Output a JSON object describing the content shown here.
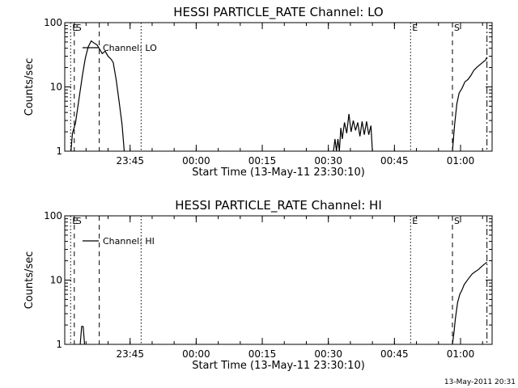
{
  "stamp": "13-May-2011 20:31",
  "chart_data": [
    {
      "type": "line",
      "title": "HESSI PARTICLE_RATE Channel: LO",
      "xlabel": "Start Time (13-May-11 23:30:10)",
      "ylabel": "Counts/sec",
      "yscale": "log",
      "ylim": [
        1,
        100
      ],
      "xlim": [
        "23:30:10",
        "01:07:10"
      ],
      "yticks": [
        {
          "v": 1,
          "label": "1"
        },
        {
          "v": 10,
          "label": "10"
        },
        {
          "v": 100,
          "label": "100"
        }
      ],
      "xticks": [
        {
          "t": "23:45",
          "label": "23:45"
        },
        {
          "t": "00:00",
          "label": "00:00"
        },
        {
          "t": "00:15",
          "label": "00:15"
        },
        {
          "t": "00:30",
          "label": "00:30"
        },
        {
          "t": "00:45",
          "label": "00:45"
        },
        {
          "t": "01:00",
          "label": "01:00"
        }
      ],
      "legend": {
        "label": "Channel: LO",
        "position": "top-left"
      },
      "markers": [
        {
          "t": "23:31:30",
          "label": "E",
          "style": "dotted"
        },
        {
          "t": "23:32:20",
          "label": "S",
          "style": "dashed"
        },
        {
          "t": "23:38:00",
          "label": "",
          "style": "dashed"
        },
        {
          "t": "23:47:30",
          "label": "",
          "style": "dotted"
        },
        {
          "t": "00:48:40",
          "label": "E",
          "style": "dotted"
        },
        {
          "t": "00:58:10",
          "label": "S",
          "style": "dashed"
        },
        {
          "t": "01:06:00",
          "label": "",
          "style": "dashdot"
        }
      ],
      "series": [
        {
          "segments": [
            [
              [
                "23:31:35",
                1.0
              ],
              [
                "23:31:55",
                1.9
              ],
              [
                "23:32:35",
                2.7
              ],
              [
                "23:33:20",
                6.0
              ],
              [
                "23:34:10",
                15.0
              ],
              [
                "23:34:50",
                28.0
              ],
              [
                "23:35:30",
                42.0
              ],
              [
                "23:36:10",
                52.0
              ],
              [
                "23:36:50",
                48.0
              ],
              [
                "23:37:30",
                45.0
              ],
              [
                "23:38:10",
                38.0
              ],
              [
                "23:38:40",
                33.0
              ],
              [
                "23:39:20",
                36.0
              ],
              [
                "23:40:00",
                30.0
              ],
              [
                "23:40:40",
                27.0
              ],
              [
                "23:41:10",
                24.0
              ],
              [
                "23:41:50",
                13.0
              ],
              [
                "23:42:30",
                6.0
              ],
              [
                "23:43:10",
                2.6
              ],
              [
                "23:43:40",
                1.0
              ]
            ],
            [
              [
                "00:31:10",
                1.0
              ],
              [
                "00:31:30",
                1.55
              ],
              [
                "00:31:50",
                1.0
              ],
              [
                "00:32:10",
                1.55
              ],
              [
                "00:32:30",
                1.0
              ],
              [
                "00:32:50",
                2.3
              ],
              [
                "00:33:10",
                1.55
              ],
              [
                "00:33:40",
                2.8
              ],
              [
                "00:34:10",
                1.9
              ],
              [
                "00:34:40",
                3.8
              ],
              [
                "00:35:10",
                2.0
              ],
              [
                "00:35:40",
                3.0
              ],
              [
                "00:36:10",
                2.1
              ],
              [
                "00:36:40",
                2.8
              ],
              [
                "00:37:10",
                1.7
              ],
              [
                "00:37:40",
                2.9
              ],
              [
                "00:38:10",
                1.8
              ],
              [
                "00:38:40",
                2.9
              ],
              [
                "00:39:10",
                1.8
              ],
              [
                "00:39:40",
                2.5
              ],
              [
                "00:40:00",
                1.0
              ]
            ],
            [
              [
                "00:58:10",
                1.0
              ],
              [
                "00:58:40",
                2.6
              ],
              [
                "00:59:10",
                5.5
              ],
              [
                "00:59:40",
                8.0
              ],
              [
                "01:00:20",
                9.5
              ],
              [
                "01:01:00",
                12.0
              ],
              [
                "01:01:40",
                13.0
              ],
              [
                "01:02:20",
                15.0
              ],
              [
                "01:03:00",
                18.0
              ],
              [
                "01:03:40",
                20.0
              ],
              [
                "01:04:20",
                22.0
              ],
              [
                "01:05:00",
                24.0
              ],
              [
                "01:05:40",
                26.0
              ],
              [
                "01:06:00",
                29.0
              ]
            ]
          ]
        }
      ]
    },
    {
      "type": "line",
      "title": "HESSI PARTICLE_RATE Channel: HI",
      "xlabel": "Start Time (13-May-11 23:30:10)",
      "ylabel": "Counts/sec",
      "yscale": "log",
      "ylim": [
        1,
        100
      ],
      "xlim": [
        "23:30:10",
        "01:07:10"
      ],
      "yticks": [
        {
          "v": 1,
          "label": "1"
        },
        {
          "v": 10,
          "label": "10"
        },
        {
          "v": 100,
          "label": "100"
        }
      ],
      "xticks": [
        {
          "t": "23:45",
          "label": "23:45"
        },
        {
          "t": "00:00",
          "label": "00:00"
        },
        {
          "t": "00:15",
          "label": "00:15"
        },
        {
          "t": "00:30",
          "label": "00:30"
        },
        {
          "t": "00:45",
          "label": "00:45"
        },
        {
          "t": "01:00",
          "label": "01:00"
        }
      ],
      "legend": {
        "label": "Channel: HI",
        "position": "top-left"
      },
      "markers": [
        {
          "t": "23:31:30",
          "label": "E",
          "style": "dotted"
        },
        {
          "t": "23:32:20",
          "label": "S",
          "style": "dashed"
        },
        {
          "t": "23:38:00",
          "label": "",
          "style": "dashed"
        },
        {
          "t": "23:47:30",
          "label": "",
          "style": "dotted"
        },
        {
          "t": "00:48:40",
          "label": "E",
          "style": "dotted"
        },
        {
          "t": "00:58:10",
          "label": "S",
          "style": "dashed"
        },
        {
          "t": "01:06:00",
          "label": "",
          "style": "dashdot"
        }
      ],
      "series": [
        {
          "segments": [
            [
              [
                "23:33:40",
                1.0
              ],
              [
                "23:34:00",
                1.9
              ],
              [
                "23:34:20",
                1.9
              ],
              [
                "23:34:40",
                1.0
              ]
            ],
            [
              [
                "00:58:10",
                1.0
              ],
              [
                "00:58:30",
                1.5
              ],
              [
                "00:58:50",
                2.5
              ],
              [
                "00:59:20",
                4.5
              ],
              [
                "00:59:50",
                6.0
              ],
              [
                "01:00:20",
                7.0
              ],
              [
                "01:00:50",
                8.5
              ],
              [
                "01:01:20",
                9.5
              ],
              [
                "01:02:00",
                11.0
              ],
              [
                "01:02:40",
                12.5
              ],
              [
                "01:03:20",
                13.5
              ],
              [
                "01:04:00",
                14.5
              ],
              [
                "01:04:40",
                16.0
              ],
              [
                "01:05:20",
                17.5
              ],
              [
                "01:06:00",
                19.0
              ]
            ]
          ]
        }
      ]
    }
  ]
}
